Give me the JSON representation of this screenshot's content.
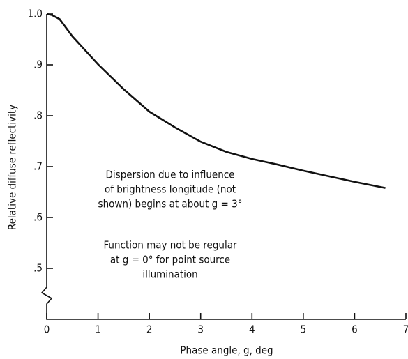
{
  "chart_data": {
    "type": "line",
    "xlabel": "Phase angle, g, deg",
    "ylabel": "Relative diffuse reflectivity",
    "x": [
      0,
      0.1,
      0.25,
      0.5,
      1,
      1.5,
      2,
      2.5,
      3,
      3.5,
      4,
      4.5,
      5,
      5.5,
      6,
      6.6
    ],
    "series": [
      {
        "color": "#111111",
        "values": [
          1.0,
          0.998,
          0.99,
          0.956,
          0.901,
          0.852,
          0.808,
          0.777,
          0.749,
          0.729,
          0.715,
          0.704,
          0.692,
          0.681,
          0.67,
          0.658
        ]
      }
    ],
    "xlim": [
      0,
      7
    ],
    "xticks": [
      0,
      1,
      2,
      3,
      4,
      5,
      6,
      7
    ],
    "ylim": [
      0.4,
      1.0
    ],
    "yticks": [
      {
        "value": 0.5,
        "label": ".5"
      },
      {
        "value": 0.6,
        "label": ".6"
      },
      {
        "value": 0.7,
        "label": ".7"
      },
      {
        "value": 0.8,
        "label": ".8"
      },
      {
        "value": 0.9,
        "label": ".9"
      },
      {
        "value": 1.0,
        "label": "1.0"
      }
    ],
    "annotations": [
      [
        "Dispersion due to influence",
        "of brightness longitude (not",
        "shown) begins at about g = 3°"
      ],
      [
        "Function may not be regular",
        "at g = 0° for point source",
        "illumination"
      ]
    ]
  }
}
